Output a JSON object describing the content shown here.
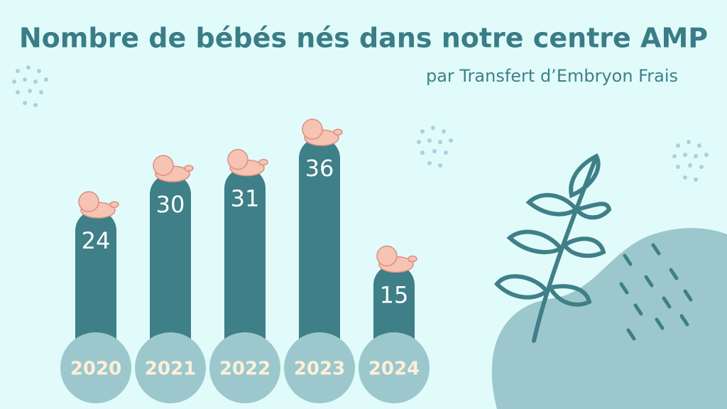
{
  "chart_data": {
    "type": "bar",
    "title": "Nombre de bébés nés dans notre centre AMP",
    "subtitle": "par Transfert d’Embryon Frais",
    "categories": [
      "2020",
      "2021",
      "2022",
      "2023",
      "2024"
    ],
    "values": [
      24,
      30,
      31,
      36,
      15
    ],
    "color": "#3f7f88"
  }
}
